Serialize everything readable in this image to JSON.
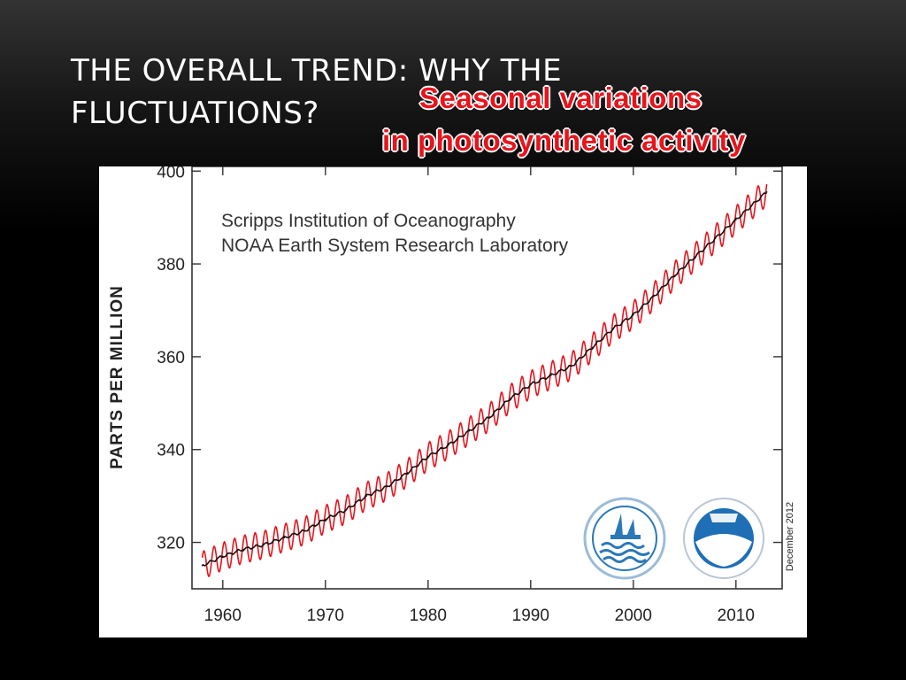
{
  "slide": {
    "title_line1": "THE OVERALL TREND: WHY THE",
    "title_line2": "FLUCTUATIONS?",
    "callout_line1": "Seasonal variations",
    "callout_line2": "in photosynthetic activity",
    "callout_color": "#e8141c"
  },
  "chart_data": {
    "type": "line",
    "title": "",
    "credit_line1": "Scripps Institution of Oceanography",
    "credit_line2": "NOAA Earth System Research Laboratory",
    "xlabel": "",
    "ylabel": "PARTS PER MILLION",
    "xlim": [
      1957,
      2014.5
    ],
    "ylim": [
      310,
      401
    ],
    "x_ticks": [
      1960,
      1970,
      1980,
      1990,
      2000,
      2010
    ],
    "y_ticks": [
      320,
      340,
      360,
      380,
      400
    ],
    "date_stamp": "December 2012",
    "grid": false,
    "series": [
      {
        "name": "",
        "kind": "monthly mean",
        "color": "#e8141c",
        "seasonal_amplitude_ppm": 3.0
      },
      {
        "name": "",
        "kind": "seasonally adjusted trend",
        "color": "#111111",
        "x": [
          1958,
          1960,
          1962,
          1964,
          1966,
          1968,
          1970,
          1972,
          1974,
          1976,
          1978,
          1980,
          1982,
          1984,
          1986,
          1988,
          1990,
          1992,
          1994,
          1996,
          1998,
          2000,
          2002,
          2004,
          2006,
          2008,
          2010,
          2012,
          2013
        ],
        "y": [
          315,
          317,
          318.5,
          319.5,
          321,
          322.5,
          325,
          327,
          330,
          332,
          335,
          338.5,
          341,
          344,
          347,
          351,
          354,
          356,
          358,
          362,
          366,
          369,
          373,
          377.5,
          381.5,
          385.5,
          389.5,
          393.5,
          395.5
        ]
      }
    ],
    "logos": [
      {
        "name": "scripps-seal-logo",
        "colors": [
          "#2a78b8",
          "#ffffff"
        ]
      },
      {
        "name": "noaa-logo",
        "colors": [
          "#1e6fb5",
          "#ffffff"
        ]
      }
    ]
  }
}
